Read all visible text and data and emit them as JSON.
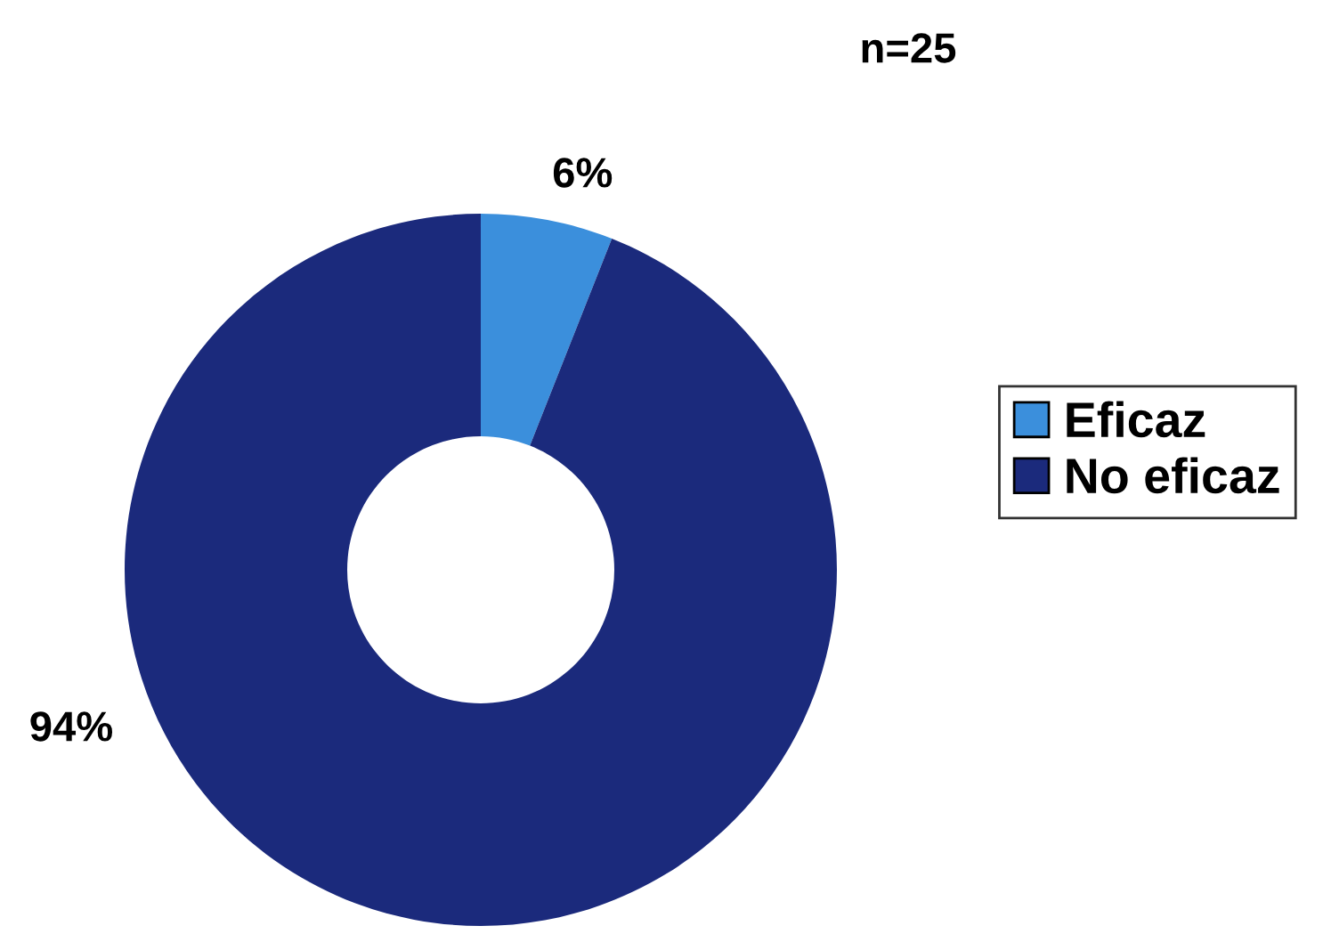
{
  "chart_data": {
    "type": "donut",
    "categories": [
      "Eficaz",
      "No eficaz"
    ],
    "values": [
      6,
      94
    ],
    "colors": [
      "#3b8fdc",
      "#1b2a7c"
    ],
    "value_labels": [
      "6%",
      "94%"
    ],
    "legend": "right",
    "annotations": [
      "n=25"
    ]
  }
}
